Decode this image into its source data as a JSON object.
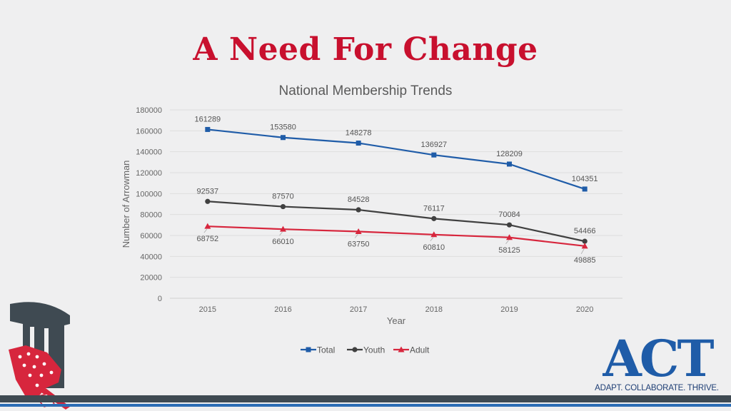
{
  "slide": {
    "title": "A Need For Change"
  },
  "act_logo": {
    "word": "ACT",
    "tagline": "ADAPT. COLLABORATE. THRIVE."
  },
  "colors": {
    "title": "#c8102e",
    "total": "#1f5ca8",
    "youth": "#404040",
    "adult": "#d7263d",
    "act": "#1f5ca8"
  },
  "chart_data": {
    "type": "line",
    "title": "National Membership Trends",
    "xlabel": "Year",
    "ylabel": "Number of Arrowman",
    "categories": [
      "2015",
      "2016",
      "2017",
      "2018",
      "2019",
      "2020"
    ],
    "ylim": [
      0,
      180000
    ],
    "yticks": [
      "0",
      "20000",
      "40000",
      "60000",
      "80000",
      "100000",
      "120000",
      "140000",
      "160000",
      "180000"
    ],
    "grid": true,
    "legend_position": "bottom",
    "series": [
      {
        "name": "Total",
        "marker": "square",
        "values": [
          161289,
          153580,
          148278,
          136927,
          128209,
          104351
        ],
        "labels": [
          "161289",
          "153580",
          "148278",
          "136927",
          "128209",
          "104351"
        ]
      },
      {
        "name": "Youth",
        "marker": "circle",
        "values": [
          92537,
          87570,
          84528,
          76117,
          70084,
          54466
        ],
        "labels": [
          "92537",
          "87570",
          "84528",
          "76117",
          "70084",
          "54466"
        ]
      },
      {
        "name": "Adult",
        "marker": "triangle",
        "values": [
          68752,
          66010,
          63750,
          60810,
          58125,
          49885
        ],
        "labels": [
          "68752",
          "66010",
          "63750",
          "60810",
          "58125",
          "49885"
        ]
      }
    ]
  }
}
